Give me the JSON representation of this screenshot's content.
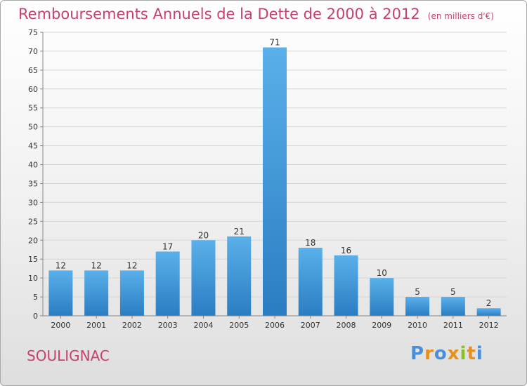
{
  "header": {
    "title": "Remboursements Annuels de la Dette de 2000 à 2012",
    "unit": "(en milliers d'€)"
  },
  "footer": {
    "commune": "SOULIGNAC",
    "brand": "Proxiti"
  },
  "colors": {
    "title": "#c8406f",
    "bar_light": "#5ab0ea",
    "bar_dark": "#2a7dc2",
    "brand_letters": [
      "#4a90d9",
      "#e8901e",
      "#4a90d9",
      "#e8901e",
      "#8bbf2a",
      "#e8901e",
      "#4a90d9"
    ]
  },
  "chart_data": {
    "type": "bar",
    "categories": [
      "2000",
      "2001",
      "2002",
      "2003",
      "2004",
      "2005",
      "2006",
      "2007",
      "2008",
      "2009",
      "2010",
      "2011",
      "2012"
    ],
    "values": [
      12,
      12,
      12,
      17,
      20,
      21,
      71,
      18,
      16,
      10,
      5,
      5,
      2
    ],
    "ylim": [
      0,
      75
    ],
    "yticks": [
      0,
      5,
      10,
      15,
      20,
      25,
      30,
      35,
      40,
      45,
      50,
      55,
      60,
      65,
      70,
      75
    ],
    "grid": true,
    "data_labels": true
  }
}
